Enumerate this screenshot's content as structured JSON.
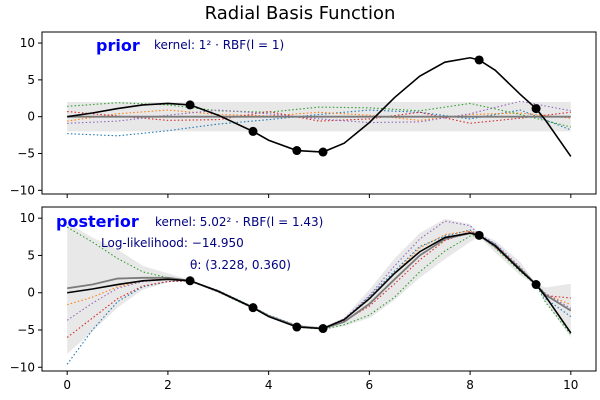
{
  "chart_data": {
    "type": "line",
    "title": "Radial Basis Function",
    "xlim": [
      -0.5,
      10.5
    ],
    "x_ticks": [
      "0",
      "2",
      "4",
      "6",
      "8",
      "10"
    ],
    "x_tick_values": [
      0,
      2,
      4,
      6,
      8,
      10
    ],
    "grid": false,
    "observations": {
      "x": [
        2.44,
        3.69,
        4.56,
        5.08,
        8.18,
        9.31
      ],
      "y": [
        1.6,
        -2.0,
        -4.6,
        -4.8,
        7.7,
        1.1
      ]
    },
    "true_function": {
      "x": [
        0,
        0.5,
        1,
        1.5,
        2,
        2.44,
        3,
        3.69,
        4,
        4.56,
        5.08,
        5.5,
        6,
        6.5,
        7,
        7.5,
        8,
        8.18,
        8.5,
        9,
        9.31,
        9.5,
        10
      ],
      "y": [
        0,
        0.5,
        1.1,
        1.6,
        1.8,
        1.6,
        0.2,
        -2.0,
        -3.2,
        -4.6,
        -4.8,
        -3.6,
        -0.8,
        2.6,
        5.5,
        7.4,
        8.0,
        7.7,
        6.3,
        3.0,
        1.1,
        -0.5,
        -5.4
      ]
    },
    "panels": [
      {
        "label": "prior",
        "annotations": [
          "kernel: 1² · RBF(l = 1)"
        ],
        "ylim": [
          -10.5,
          11.5
        ],
        "y_ticks": [
          "10",
          "5",
          "0",
          "−5",
          "−10"
        ],
        "y_tick_values": [
          10,
          5,
          0,
          -5,
          -10
        ],
        "mean": {
          "x": [
            0,
            2,
            4,
            6,
            8,
            10
          ],
          "y": [
            0,
            0,
            0,
            0,
            0,
            0
          ]
        },
        "band": {
          "x": [
            0,
            2,
            4,
            6,
            8,
            10
          ],
          "lower": [
            -2,
            -2,
            -2,
            -2,
            -2,
            -2
          ],
          "upper": [
            2,
            2,
            2,
            2,
            2,
            2
          ]
        },
        "samples": [
          {
            "color": "#1f77b4",
            "x": [
              0,
              1,
              2,
              3,
              4,
              5,
              6,
              7,
              8,
              9,
              10
            ],
            "y": [
              -2.3,
              -2.6,
              -1.9,
              -1.0,
              -0.4,
              0.3,
              0.9,
              0.6,
              -0.3,
              0.9,
              -1.8
            ]
          },
          {
            "color": "#ff7f0e",
            "x": [
              0,
              1,
              2,
              3,
              4,
              5,
              6,
              7,
              8,
              9,
              10
            ],
            "y": [
              -0.6,
              0.4,
              0.9,
              0.3,
              0.1,
              0.6,
              0.2,
              -0.5,
              0.3,
              0.5,
              -0.2
            ]
          },
          {
            "color": "#2ca02c",
            "x": [
              0,
              1,
              2,
              3,
              4,
              5,
              6,
              7,
              8,
              9,
              10
            ],
            "y": [
              1.4,
              1.9,
              1.6,
              0.8,
              0.6,
              1.3,
              1.2,
              0.8,
              1.8,
              0.3,
              -1.4
            ]
          },
          {
            "color": "#d62728",
            "x": [
              0,
              1,
              2,
              3,
              4,
              5,
              6,
              7,
              8,
              9,
              10
            ],
            "y": [
              0.7,
              0.1,
              -0.5,
              -0.4,
              0.7,
              -0.6,
              -0.3,
              0.6,
              -0.9,
              -0.2,
              0.6
            ]
          },
          {
            "color": "#9467bd",
            "x": [
              0,
              1,
              2,
              3,
              4,
              5,
              6,
              7,
              8,
              9,
              10
            ],
            "y": [
              -0.9,
              -0.6,
              0.2,
              0.9,
              0.4,
              -0.3,
              -0.8,
              -0.7,
              0.4,
              2.1,
              0.8
            ]
          }
        ]
      },
      {
        "label": "posterior",
        "annotations": [
          "kernel: 5.02² · RBF(l = 1.43)",
          "Log-likelihood: −14.950",
          "θ: (3.228, 0.360)"
        ],
        "ylim": [
          -10.5,
          11.5
        ],
        "y_ticks": [
          "10",
          "5",
          "0",
          "−5",
          "−10"
        ],
        "y_tick_values": [
          10,
          5,
          0,
          -5,
          -10
        ],
        "mean": {
          "x": [
            0,
            0.5,
            1,
            1.5,
            2,
            2.44,
            3,
            3.69,
            4,
            4.56,
            5.08,
            5.5,
            6,
            6.5,
            7,
            7.5,
            8,
            8.18,
            8.5,
            9,
            9.31,
            9.5,
            10
          ],
          "y": [
            0.6,
            1.1,
            1.9,
            2.0,
            2.0,
            1.6,
            0.2,
            -2.0,
            -3.1,
            -4.5,
            -4.8,
            -3.9,
            -1.5,
            1.8,
            5.0,
            7.2,
            8.0,
            7.7,
            6.2,
            3.2,
            1.1,
            -0.3,
            -2.4
          ]
        },
        "band": {
          "x": [
            0,
            0.5,
            1,
            1.5,
            2,
            2.44,
            3,
            3.69,
            4,
            4.56,
            5.08,
            5.5,
            6,
            6.5,
            7,
            7.5,
            8,
            8.18,
            8.5,
            9,
            9.31,
            9.5,
            10
          ],
          "lower": [
            -8.2,
            -5.2,
            -2.0,
            0.4,
            1.4,
            1.5,
            0.0,
            -2.2,
            -3.3,
            -4.7,
            -5.0,
            -4.5,
            -3.4,
            -1.0,
            2.0,
            4.5,
            6.8,
            7.5,
            5.4,
            2.3,
            1.0,
            -1.3,
            -6.0
          ],
          "upper": [
            9.4,
            7.4,
            5.8,
            3.6,
            2.6,
            1.7,
            0.4,
            -1.8,
            -2.9,
            -4.3,
            -4.6,
            -3.3,
            0.4,
            4.6,
            8.0,
            9.9,
            9.2,
            7.9,
            7.0,
            4.1,
            1.2,
            0.7,
            1.2
          ]
        },
        "samples": [
          {
            "color": "#1f77b4",
            "x": [
              0,
              0.5,
              1,
              1.5,
              2,
              2.44,
              3,
              3.69,
              4,
              4.56,
              5.08,
              5.5,
              6,
              6.5,
              7,
              7.5,
              8,
              8.18,
              8.5,
              9,
              9.31,
              9.5,
              10
            ],
            "y": [
              -9.6,
              -5.0,
              -1.2,
              0.8,
              1.5,
              1.6,
              0.3,
              -1.9,
              -3.0,
              -4.4,
              -4.8,
              -3.7,
              -0.5,
              2.9,
              6.2,
              7.6,
              8.4,
              7.7,
              6.5,
              3.1,
              1.1,
              -0.8,
              -3.2
            ]
          },
          {
            "color": "#ff7f0e",
            "x": [
              0,
              0.5,
              1,
              1.5,
              2,
              2.44,
              3,
              3.69,
              4,
              4.56,
              5.08,
              5.5,
              6,
              6.5,
              7,
              7.5,
              8,
              8.18,
              8.5,
              9,
              9.31,
              9.5,
              10
            ],
            "y": [
              -1.6,
              -0.6,
              0.8,
              1.6,
              1.9,
              1.6,
              0.2,
              -2.0,
              -3.1,
              -4.5,
              -4.8,
              -3.6,
              -0.9,
              2.6,
              6.0,
              7.8,
              8.3,
              7.7,
              6.4,
              3.3,
              1.1,
              -0.2,
              -1.6
            ]
          },
          {
            "color": "#2ca02c",
            "x": [
              0,
              0.5,
              1,
              1.5,
              2,
              2.44,
              3,
              3.69,
              4,
              4.56,
              5.08,
              5.5,
              6,
              6.5,
              7,
              7.5,
              8,
              8.18,
              8.5,
              9,
              9.31,
              9.5,
              10
            ],
            "y": [
              8.8,
              6.8,
              4.6,
              2.8,
              2.0,
              1.6,
              0.1,
              -2.1,
              -3.2,
              -4.6,
              -4.9,
              -4.3,
              -3.0,
              -0.6,
              2.8,
              5.6,
              7.6,
              7.7,
              6.0,
              2.8,
              1.1,
              -1.3,
              -5.6
            ]
          },
          {
            "color": "#d62728",
            "x": [
              0,
              0.5,
              1,
              1.5,
              2,
              2.44,
              3,
              3.69,
              4,
              4.56,
              5.08,
              5.5,
              6,
              6.5,
              7,
              7.5,
              8,
              8.18,
              8.5,
              9,
              9.31,
              9.5,
              10
            ],
            "y": [
              -6.0,
              -3.4,
              -0.8,
              0.9,
              1.5,
              1.6,
              0.1,
              -2.0,
              -3.1,
              -4.5,
              -4.8,
              -3.8,
              -1.8,
              1.2,
              4.4,
              7.0,
              8.2,
              7.7,
              6.1,
              3.0,
              1.1,
              -0.4,
              -0.7
            ]
          },
          {
            "color": "#9467bd",
            "x": [
              0,
              0.5,
              1,
              1.5,
              2,
              2.44,
              3,
              3.69,
              4,
              4.56,
              5.08,
              5.5,
              6,
              6.5,
              7,
              7.5,
              8,
              8.18,
              8.5,
              9,
              9.31,
              9.5,
              10
            ],
            "y": [
              -3.7,
              -1.4,
              0.6,
              1.5,
              1.8,
              1.6,
              0.2,
              -2.0,
              -3.1,
              -4.5,
              -4.8,
              -3.5,
              -0.4,
              3.6,
              7.2,
              9.6,
              9.0,
              7.8,
              6.6,
              3.4,
              1.1,
              -0.1,
              -2.1
            ]
          }
        ]
      }
    ]
  }
}
